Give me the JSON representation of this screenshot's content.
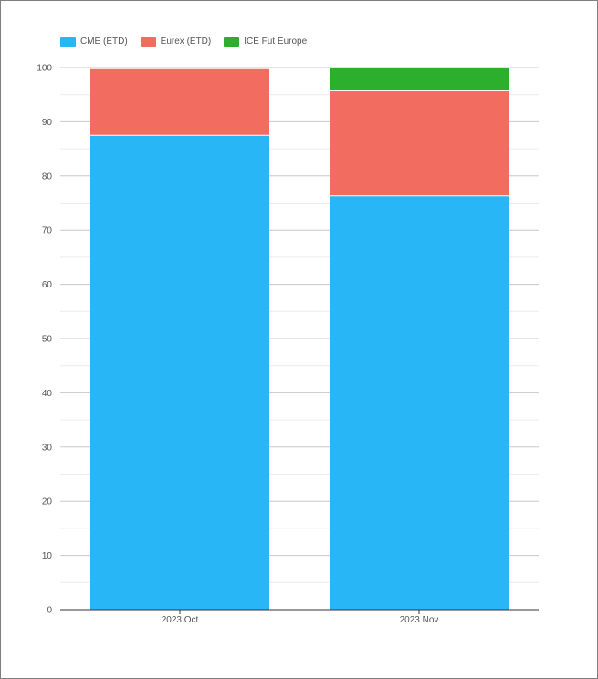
{
  "chart_data": {
    "type": "bar",
    "stacked": true,
    "categories": [
      "2023 Oct",
      "2023 Nov"
    ],
    "series": [
      {
        "name": "CME (ETD)",
        "color": "#29b6f6",
        "values": [
          87.5,
          76.3
        ]
      },
      {
        "name": "Eurex (ETD)",
        "color": "#f26d60",
        "values": [
          12.3,
          19.4
        ]
      },
      {
        "name": "ICE Fut Europe",
        "color": "#2caf2c",
        "values": [
          0.2,
          4.3
        ]
      }
    ],
    "ylim": [
      0,
      100
    ],
    "yticks": [
      0,
      10,
      20,
      30,
      40,
      50,
      60,
      70,
      80,
      90,
      100
    ],
    "grid": true,
    "legend_position": "top-left"
  }
}
